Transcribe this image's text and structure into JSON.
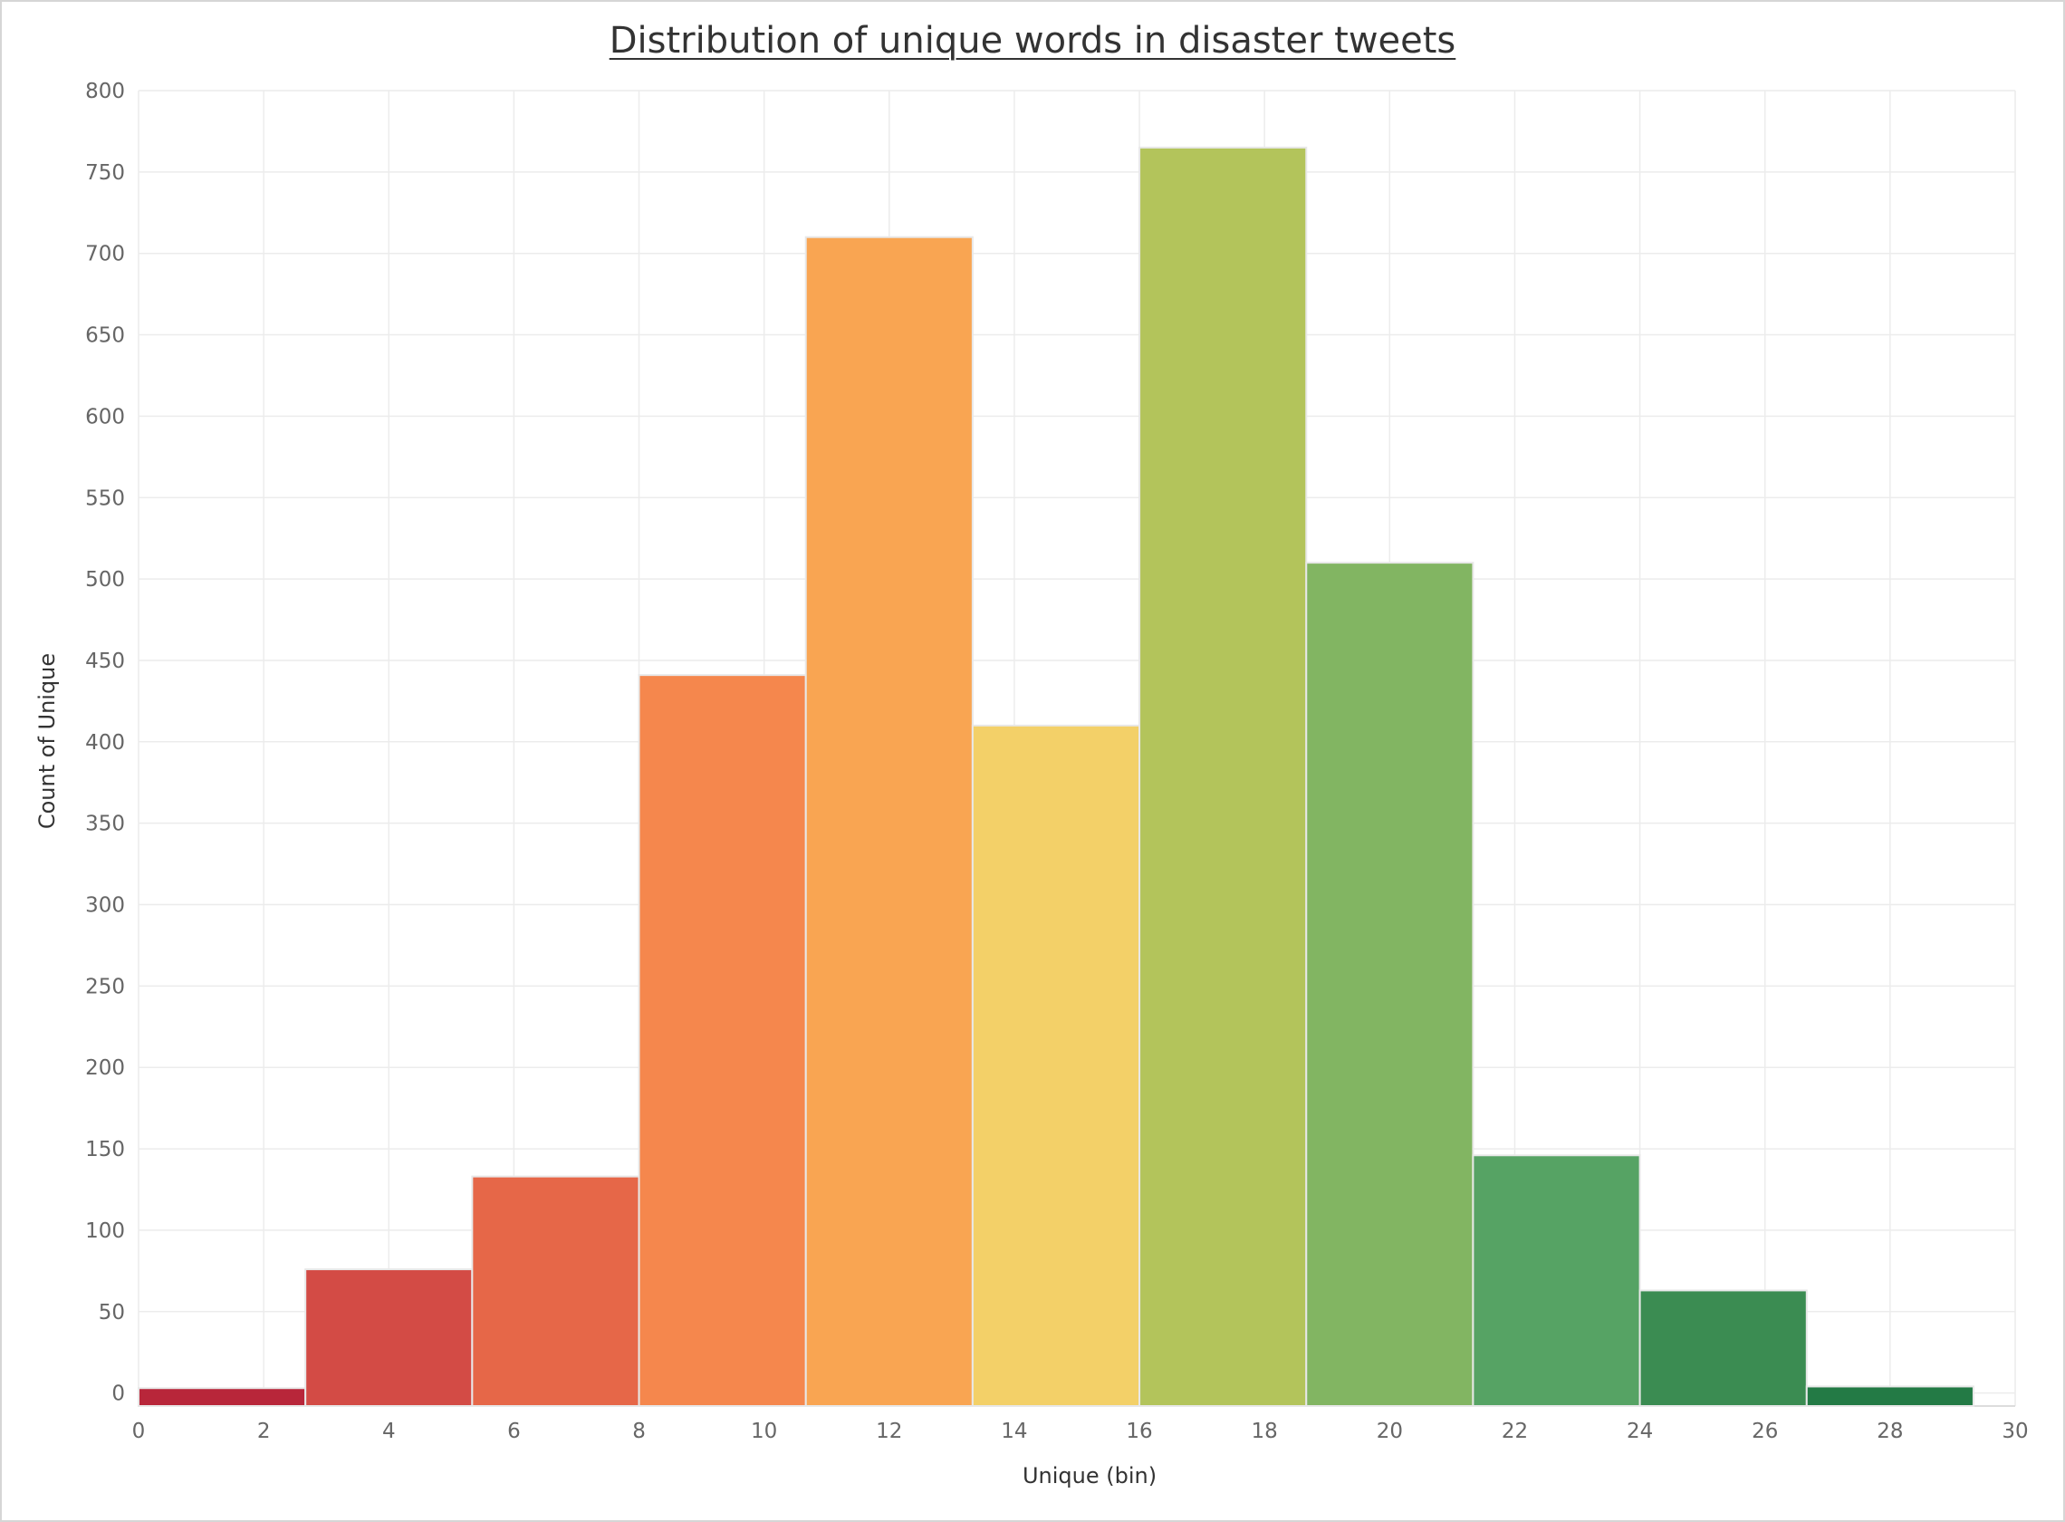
{
  "chart_data": {
    "type": "bar",
    "title": "Distribution of unique words in disaster tweets",
    "xlabel": "Unique (bin)",
    "ylabel": "Count of Unique",
    "bin_width": 2.667,
    "bins": [
      {
        "start": 0.0,
        "end": 2.667,
        "value": 3,
        "color": "#b8263a"
      },
      {
        "start": 2.667,
        "end": 5.333,
        "value": 76,
        "color": "#d34b45"
      },
      {
        "start": 5.333,
        "end": 8.0,
        "value": 133,
        "color": "#e66748"
      },
      {
        "start": 8.0,
        "end": 10.667,
        "value": 441,
        "color": "#f5874d"
      },
      {
        "start": 10.667,
        "end": 13.333,
        "value": 710,
        "color": "#f9a552"
      },
      {
        "start": 13.333,
        "end": 16.0,
        "value": 410,
        "color": "#f3d068"
      },
      {
        "start": 16.0,
        "end": 18.667,
        "value": 765,
        "color": "#b3c45b"
      },
      {
        "start": 18.667,
        "end": 21.333,
        "value": 510,
        "color": "#82b562"
      },
      {
        "start": 21.333,
        "end": 24.0,
        "value": 146,
        "color": "#56a364"
      },
      {
        "start": 24.0,
        "end": 26.667,
        "value": 63,
        "color": "#3b8c52"
      },
      {
        "start": 26.667,
        "end": 29.333,
        "value": 4,
        "color": "#237a45"
      }
    ],
    "xlim": [
      0,
      30
    ],
    "ylim": [
      -8,
      800
    ],
    "x_ticks": [
      "0",
      "2",
      "4",
      "6",
      "8",
      "10",
      "12",
      "14",
      "16",
      "18",
      "20",
      "22",
      "24",
      "26",
      "28",
      "30"
    ],
    "y_ticks": [
      "0",
      "50",
      "100",
      "150",
      "200",
      "250",
      "300",
      "350",
      "400",
      "450",
      "500",
      "550",
      "600",
      "650",
      "700",
      "750",
      "800"
    ],
    "grid": true,
    "legend": "none"
  }
}
